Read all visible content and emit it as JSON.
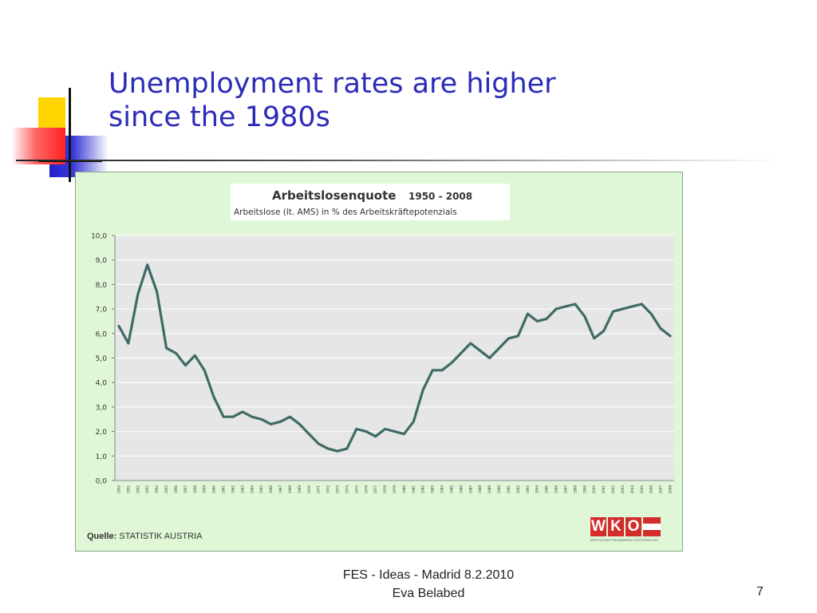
{
  "slide": {
    "title_line1": "Unemployment rates are higher",
    "title_line2": "since the 1980s",
    "footer_line1": "FES - Ideas - Madrid 8.2.2010",
    "footer_line2": "Eva Belabed",
    "page_number": "7"
  },
  "colors": {
    "title": "#2b2bb8",
    "panel_background": "#dff7d6",
    "plot_background": "#e6e6e6",
    "line": "#3e6b66",
    "logo_red": "#d42b2b"
  },
  "source": {
    "label": "Quelle:",
    "value": "STATISTIK AUSTRIA"
  },
  "logo": {
    "letters": [
      "W",
      "K",
      "O"
    ],
    "subtitle": "WIRTSCHAFTSKAMMERN ÖSTERREICHS"
  },
  "chart_data": {
    "type": "line",
    "title": "Arbeitslosenquote",
    "title_range": "1950 - 2008",
    "subtitle": "Arbeitslose (lt. AMS) in % des Arbeitskräftepotenzials",
    "ylim": [
      0,
      10
    ],
    "y_ticks": [
      "0,0",
      "1,0",
      "2,0",
      "3,0",
      "4,0",
      "5,0",
      "6,0",
      "7,0",
      "8,0",
      "9,0",
      "10,0"
    ],
    "grid": true,
    "x": [
      1950,
      1951,
      1952,
      1953,
      1954,
      1955,
      1956,
      1957,
      1958,
      1959,
      1960,
      1961,
      1962,
      1963,
      1964,
      1965,
      1966,
      1967,
      1968,
      1969,
      1970,
      1971,
      1972,
      1973,
      1974,
      1975,
      1976,
      1977,
      1978,
      1979,
      1980,
      1981,
      1982,
      1983,
      1984,
      1985,
      1986,
      1987,
      1988,
      1989,
      1990,
      1991,
      1992,
      1993,
      1994,
      1995,
      1996,
      1997,
      1998,
      1999,
      2000,
      2001,
      2002,
      2003,
      2004,
      2005,
      2006,
      2007,
      2008
    ],
    "series": [
      {
        "values": [
          6.3,
          5.6,
          7.6,
          8.8,
          7.7,
          5.4,
          5.2,
          4.7,
          5.1,
          4.5,
          3.4,
          2.6,
          2.6,
          2.8,
          2.6,
          2.5,
          2.3,
          2.4,
          2.6,
          2.3,
          1.9,
          1.5,
          1.3,
          1.2,
          1.3,
          2.1,
          2.0,
          1.8,
          2.1,
          2.0,
          1.9,
          2.4,
          3.7,
          4.5,
          4.5,
          4.8,
          5.2,
          5.6,
          5.3,
          5.0,
          5.4,
          5.8,
          5.9,
          6.8,
          6.5,
          6.6,
          7.0,
          7.1,
          7.2,
          6.7,
          5.8,
          6.1,
          6.9,
          7.0,
          7.1,
          7.2,
          6.8,
          6.2,
          5.9
        ]
      }
    ]
  }
}
